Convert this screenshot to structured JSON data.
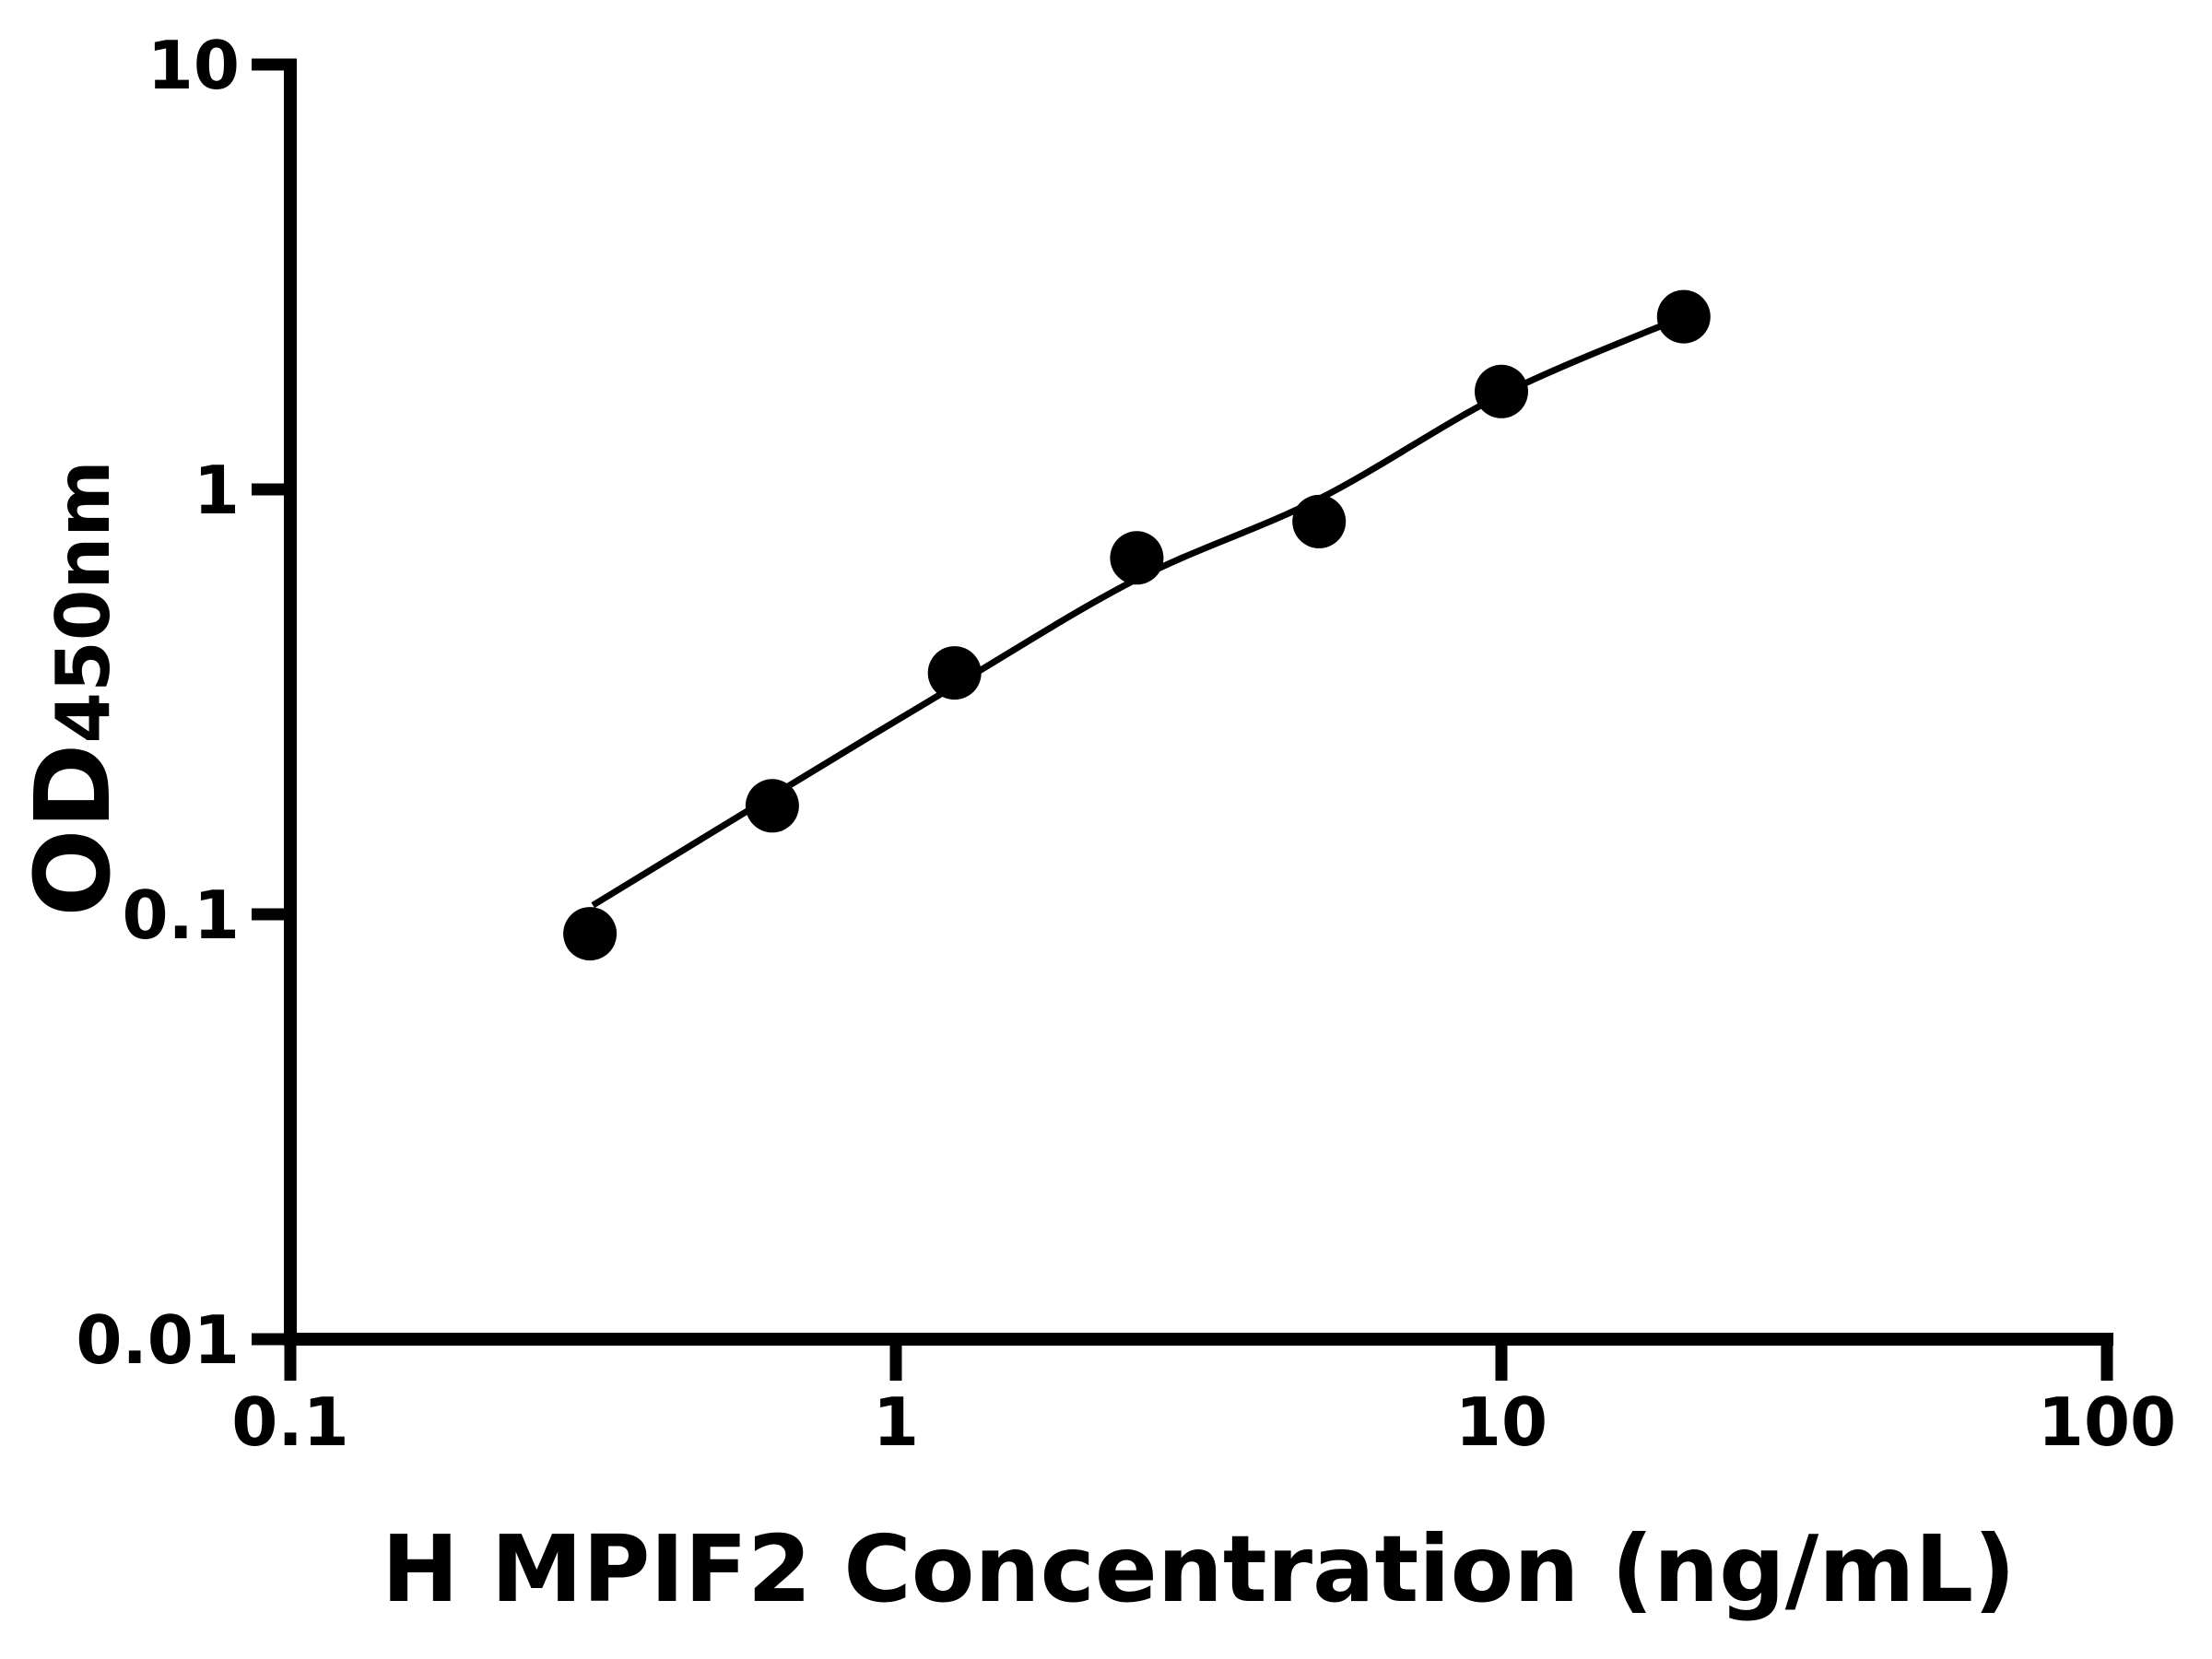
{
  "page": {
    "background": "#ffffff",
    "foreground": "#000000"
  },
  "chart_data": {
    "type": "scatter",
    "title": "",
    "xlabel": "H MPIF2 Concentration (ng/mL)",
    "ylabel_main": "OD",
    "ylabel_sub": "450nm",
    "x_scale": "log",
    "y_scale": "log",
    "xlim": [
      0.1,
      100
    ],
    "ylim": [
      0.01,
      10
    ],
    "grid": false,
    "legend": null,
    "x_ticks": [
      {
        "value": 0.1,
        "label": "0.1"
      },
      {
        "value": 1,
        "label": "1"
      },
      {
        "value": 10,
        "label": "10"
      },
      {
        "value": 100,
        "label": "100"
      }
    ],
    "y_ticks": [
      {
        "value": 0.01,
        "label": "0.01"
      },
      {
        "value": 0.1,
        "label": "0.1"
      },
      {
        "value": 1,
        "label": "1"
      },
      {
        "value": 10,
        "label": "10"
      }
    ],
    "series": [
      {
        "name": "standard-points",
        "marker": "circle",
        "color": "#000000",
        "x": [
          0.3125,
          0.625,
          1.25,
          2.5,
          5,
          10,
          20
        ],
        "y": [
          0.09,
          0.18,
          0.37,
          0.69,
          0.84,
          1.7,
          2.55
        ]
      }
    ],
    "fit_curve": {
      "color": "#000000",
      "points": [
        [
          0.316,
          0.105
        ],
        [
          0.625,
          0.19
        ],
        [
          1.25,
          0.345
        ],
        [
          2.5,
          0.615
        ],
        [
          5,
          0.95
        ],
        [
          10,
          1.67
        ],
        [
          20,
          2.55
        ]
      ]
    },
    "axis_color": "#000000",
    "marker_color": "#000000"
  }
}
